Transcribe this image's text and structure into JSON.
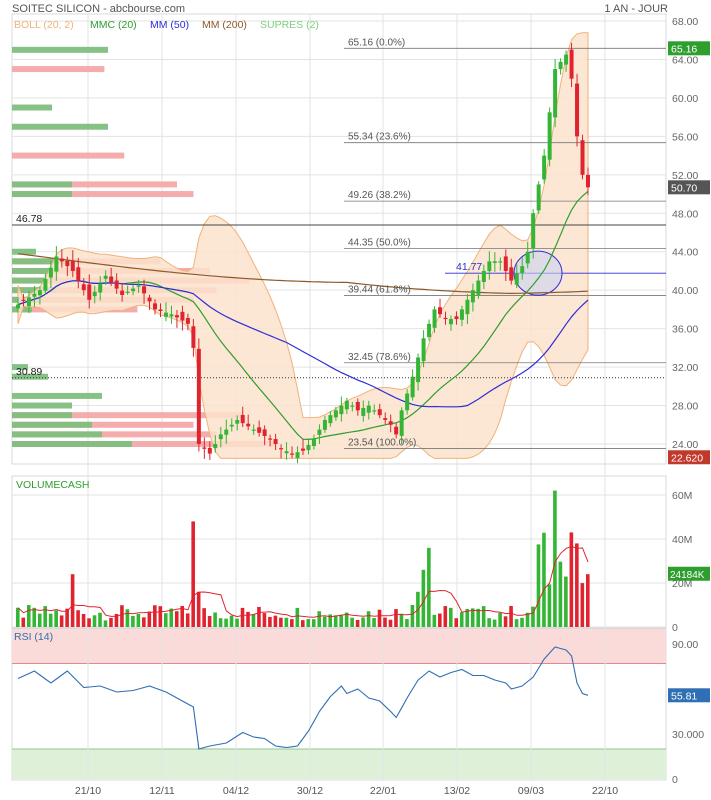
{
  "header": {
    "title": "SOITEC SILICON - abcbourse.com",
    "period": "1 AN - JOUR",
    "legend": [
      {
        "label": "BOLL (20, 2)",
        "color": "#f0b27a"
      },
      {
        "label": "MMC (20)",
        "color": "#2e9e2e"
      },
      {
        "label": "MM (50)",
        "color": "#2d2dd8"
      },
      {
        "label": "MM (200)",
        "color": "#8b5a2b"
      },
      {
        "label": "SUPRES (2)",
        "color": "#7ccf7c"
      }
    ]
  },
  "colors": {
    "up": "#34b534",
    "down": "#e0232e",
    "boll_fill": "#fbe3cc",
    "boll_line": "#f0b27a",
    "mmc": "#2e9e2e",
    "mm50": "#2d2dd8",
    "mm200": "#8b5a2b",
    "rsi": "#2f6fb3",
    "grid": "#e3e3e3",
    "label_green": "#2e9e2e",
    "label_red": "#c0392b",
    "label_grey": "#555555"
  },
  "chart_data": [
    {
      "type": "candlestick",
      "panel": "price",
      "x_tick_labels": [
        "21/10",
        "12/11",
        "04/12",
        "30/12",
        "22/01",
        "13/02",
        "09/03",
        "22/10"
      ],
      "y_tick_labels": [
        "68.00",
        "64.00",
        "60.00",
        "56.00",
        "52.00",
        "48.00",
        "44.00",
        "40.00",
        "36.00",
        "32.00",
        "28.00",
        "24.00"
      ],
      "ylim": [
        22,
        68
      ],
      "price_anchor_points": [
        [
          0,
          38.5
        ],
        [
          4,
          40
        ],
        [
          7,
          43.5
        ],
        [
          10,
          42
        ],
        [
          13,
          39
        ],
        [
          16,
          41.5
        ],
        [
          19,
          39.5
        ],
        [
          22,
          40.5
        ],
        [
          25,
          38
        ],
        [
          28,
          37.5
        ],
        [
          31,
          36.5
        ],
        [
          32,
          34
        ],
        [
          33,
          24
        ],
        [
          35,
          23
        ],
        [
          37,
          25
        ],
        [
          40,
          26.5
        ],
        [
          43,
          25.5
        ],
        [
          46,
          24.5
        ],
        [
          48,
          23.5
        ],
        [
          50,
          23
        ],
        [
          52,
          23.3
        ],
        [
          54,
          24.5
        ],
        [
          56,
          26.5
        ],
        [
          58,
          27.5
        ],
        [
          60,
          28.5
        ],
        [
          62,
          27.5
        ],
        [
          64,
          28
        ],
        [
          66,
          27
        ],
        [
          68,
          26
        ],
        [
          69,
          25
        ],
        [
          70,
          27.5
        ],
        [
          72,
          31
        ],
        [
          74,
          35
        ],
        [
          76,
          38
        ],
        [
          78,
          37
        ],
        [
          80,
          37
        ],
        [
          82,
          39
        ],
        [
          84,
          41
        ],
        [
          86,
          43
        ],
        [
          88,
          43
        ],
        [
          90,
          41
        ],
        [
          92,
          42.5
        ],
        [
          93,
          44
        ],
        [
          94,
          48
        ],
        [
          96,
          54
        ],
        [
          98,
          63
        ],
        [
          100,
          64.5
        ],
        [
          101,
          62
        ],
        [
          102,
          56
        ],
        [
          103,
          52
        ],
        [
          104,
          50.7
        ]
      ],
      "volume_profile_bars": {
        "note": "horizontal volume-at-price bars on left side",
        "rows": [
          {
            "price": 65,
            "green": 0.48,
            "red": 0
          },
          {
            "price": 63,
            "green": 0,
            "red": 0.28
          },
          {
            "price": 59,
            "green": 0.2,
            "red": 0
          },
          {
            "price": 57,
            "green": 0.48,
            "red": 0
          },
          {
            "price": 54,
            "green": 0,
            "red": 0.34
          },
          {
            "price": 51,
            "green": 0.3,
            "red": 0.5
          },
          {
            "price": 50,
            "green": 0.3,
            "red": 0.55
          },
          {
            "price": 44,
            "green": 0.12,
            "red": 0
          },
          {
            "price": 43,
            "green": 0.3,
            "red": 0.45
          },
          {
            "price": 42,
            "green": 0.2,
            "red": 0.6
          },
          {
            "price": 41,
            "green": 0.18,
            "red": 0.72
          },
          {
            "price": 40,
            "green": 0.22,
            "red": 0.62
          },
          {
            "price": 39,
            "green": 0.14,
            "red": 0.55
          },
          {
            "price": 38,
            "green": 0.1,
            "red": 0.38
          },
          {
            "price": 32,
            "green": 0.08,
            "red": 0
          },
          {
            "price": 31,
            "green": 0.18,
            "red": 0
          },
          {
            "price": 29,
            "green": 0.45,
            "red": 0
          },
          {
            "price": 28,
            "green": 0.3,
            "red": 0
          },
          {
            "price": 27,
            "green": 0.3,
            "red": 0.7
          },
          {
            "price": 26,
            "green": 0.4,
            "red": 0.55
          },
          {
            "price": 25,
            "green": 0.45,
            "red": 0.62
          },
          {
            "price": 24,
            "green": 0.6,
            "red": 0.8
          }
        ]
      },
      "fibonacci_levels": [
        {
          "label": "65.16  (0.0%)",
          "value": 65.16
        },
        {
          "label": "55.34  (23.6%)",
          "value": 55.34
        },
        {
          "label": "49.26  (38.2%)",
          "value": 49.26
        },
        {
          "label": "44.35  (50.0%)",
          "value": 44.35
        },
        {
          "label": "39.44  (61.8%)",
          "value": 39.44
        },
        {
          "label": "32.45  (78.6%)",
          "value": 32.45
        },
        {
          "label": "23.54  (100.0%)",
          "value": 23.54
        }
      ],
      "horizontal_levels": [
        {
          "label": "46.78",
          "value": 46.78,
          "style": "solid"
        },
        {
          "label": "30.89",
          "value": 30.89,
          "style": "dotted"
        },
        {
          "label": "41.77",
          "value": 41.77,
          "style": "blue"
        }
      ],
      "price_tags": [
        {
          "label": "65.16",
          "value": 65.16,
          "color": "#2e9e2e"
        },
        {
          "label": "50.70",
          "value": 50.7,
          "color": "#555555"
        },
        {
          "label": "22.620",
          "value": 22.62,
          "color": "#c0392b"
        }
      ]
    },
    {
      "type": "bar",
      "panel": "volume",
      "title": "VOLUMECASH",
      "y_tick_labels": [
        "60M",
        "40M",
        "20M",
        "0"
      ],
      "ylim": [
        0,
        66
      ],
      "tag": "24184K",
      "tag_value": 24.2
    },
    {
      "type": "line",
      "panel": "rsi",
      "title": "RSI (14)",
      "y_tick_labels": [
        "90.00",
        "30.000",
        "0"
      ],
      "ylim": [
        0,
        100
      ],
      "tag": "55.81",
      "tag_value": 55.81,
      "anchor_points": [
        [
          0,
          67
        ],
        [
          3,
          72
        ],
        [
          6,
          64
        ],
        [
          9,
          72
        ],
        [
          12,
          61
        ],
        [
          15,
          62
        ],
        [
          18,
          58
        ],
        [
          21,
          59
        ],
        [
          24,
          62
        ],
        [
          27,
          58
        ],
        [
          30,
          52
        ],
        [
          32,
          48
        ],
        [
          33,
          20
        ],
        [
          35,
          22
        ],
        [
          38,
          24
        ],
        [
          41,
          31
        ],
        [
          43,
          28
        ],
        [
          45,
          27
        ],
        [
          47,
          22
        ],
        [
          49,
          21
        ],
        [
          51,
          22
        ],
        [
          53,
          32
        ],
        [
          55,
          45
        ],
        [
          57,
          55
        ],
        [
          59,
          62
        ],
        [
          60,
          57
        ],
        [
          62,
          60
        ],
        [
          64,
          54
        ],
        [
          66,
          52
        ],
        [
          68,
          45
        ],
        [
          69,
          41
        ],
        [
          71,
          54
        ],
        [
          73,
          66
        ],
        [
          75,
          72
        ],
        [
          77,
          68
        ],
        [
          79,
          71
        ],
        [
          81,
          73
        ],
        [
          83,
          69
        ],
        [
          85,
          69
        ],
        [
          87,
          66
        ],
        [
          89,
          64
        ],
        [
          90,
          60
        ],
        [
          92,
          62
        ],
        [
          94,
          68
        ],
        [
          96,
          80
        ],
        [
          98,
          88
        ],
        [
          100,
          86
        ],
        [
          101,
          82
        ],
        [
          102,
          64
        ],
        [
          103,
          57
        ],
        [
          104,
          55.8
        ]
      ]
    }
  ]
}
